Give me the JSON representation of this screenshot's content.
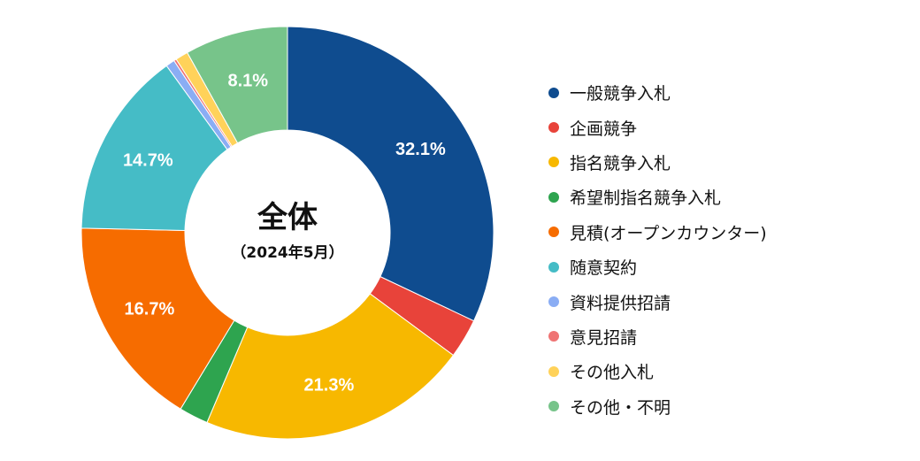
{
  "chart_data": {
    "type": "pie",
    "title": "全体",
    "subtitle": "（2024年5月）",
    "categories": [
      "一般競争入札",
      "企画競争",
      "指名競争入札",
      "希望制指名競争入札",
      "見積(オープンカウンター)",
      "随意契約",
      "資料提供招請",
      "意見招請",
      "その他入札",
      "その他・不明"
    ],
    "values": [
      32.1,
      3.1,
      21.3,
      2.3,
      16.7,
      14.7,
      0.7,
      0.2,
      1.0,
      8.1
    ],
    "data_labels": [
      "32.1%",
      "",
      "21.3%",
      "",
      "16.7%",
      "14.7%",
      "",
      "",
      "",
      "8.1%"
    ],
    "colors": [
      "#0F4C8F",
      "#E8433A",
      "#F7B800",
      "#2EA44F",
      "#F66C00",
      "#45BCC6",
      "#8AADF4",
      "#EF7474",
      "#FFD25A",
      "#77C48A"
    ],
    "legend_position": "right",
    "style": "donut"
  }
}
